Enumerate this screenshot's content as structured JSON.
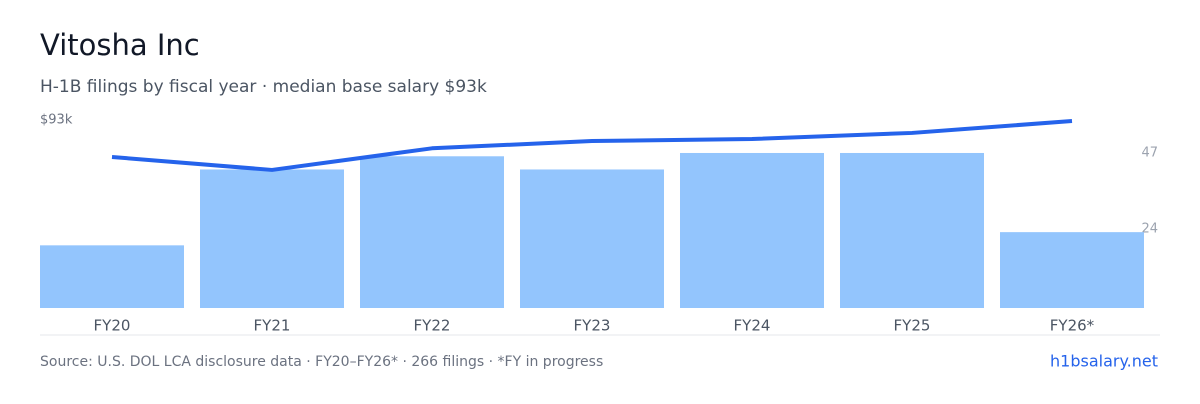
{
  "chart_data": {
    "type": "bar_line",
    "title": "Vitosha Inc",
    "subtitle": "H-1B filings by fiscal year · median base salary $93k",
    "categories": [
      "FY20",
      "FY21",
      "FY22",
      "FY23",
      "FY24",
      "FY25",
      "FY26*"
    ],
    "series": [
      {
        "name": "H-1B filings",
        "type": "bar",
        "axis": "y2",
        "color": "#93c5fd",
        "values": [
          19,
          42,
          46,
          42,
          47,
          47,
          23
        ]
      },
      {
        "name": "Median base salary",
        "type": "line",
        "axis": "y",
        "color": "#2563eb",
        "values": [
          74.7,
          68.3,
          79,
          82.6,
          83.6,
          86.6,
          92.5
        ]
      }
    ],
    "ylim": [
      0,
      93
    ],
    "yticks": [
      {
        "value": 93,
        "label": "$93k"
      }
    ],
    "y2lim": [
      0,
      57
    ],
    "y2ticks": [
      24,
      47
    ],
    "source": "Source: U.S. DOL LCA disclosure data · FY20–FY26* · 266 filings · *FY in progress",
    "site": "h1bsalary.net"
  }
}
